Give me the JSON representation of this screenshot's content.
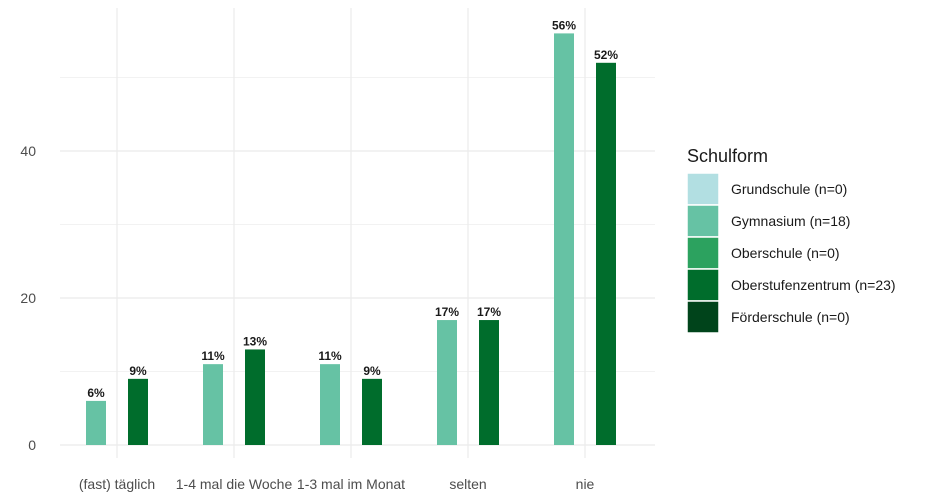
{
  "chart_data": {
    "type": "bar",
    "categories": [
      "(fast) täglich",
      "1-4 mal die Woche",
      "1-3 mal im Monat",
      "selten",
      "nie"
    ],
    "series": [
      {
        "name": "Grundschule (n=0)",
        "color": "#b2dfe2",
        "values": [
          null,
          null,
          null,
          null,
          null
        ],
        "labels": [
          null,
          null,
          null,
          null,
          null
        ]
      },
      {
        "name": "Gymnasium (n=18)",
        "color": "#66c2a4",
        "values": [
          6,
          11,
          11,
          17,
          56
        ],
        "labels": [
          "6%",
          "11%",
          "11%",
          "17%",
          "56%"
        ]
      },
      {
        "name": "Oberschule (n=0)",
        "color": "#2ca25f",
        "values": [
          null,
          null,
          null,
          null,
          null
        ],
        "labels": [
          null,
          null,
          null,
          null,
          null
        ]
      },
      {
        "name": "Oberstufenzentrum (n=23)",
        "color": "#006d2c",
        "values": [
          9,
          13,
          9,
          17,
          52
        ],
        "labels": [
          "9%",
          "13%",
          "9%",
          "17%",
          "52%"
        ]
      },
      {
        "name": "Förderschule (n=0)",
        "color": "#00441b",
        "values": [
          null,
          null,
          null,
          null,
          null
        ],
        "labels": [
          null,
          null,
          null,
          null,
          null
        ]
      }
    ],
    "y_ticks": [
      0,
      20,
      40
    ],
    "ylim": [
      -2,
      60
    ],
    "grid": true,
    "legend_title": "Schulform",
    "legend_position": "right"
  }
}
